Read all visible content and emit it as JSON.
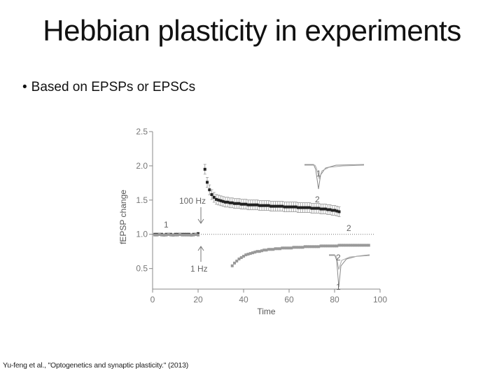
{
  "slide": {
    "title": "Hebbian plasticity in experiments",
    "bullet": "Based on EPSPs or EPSCs",
    "bullet_icon": "bullet-dot",
    "citation": "Yu-feng et al., \"Optogenetics and synaptic plasticity.\" (2013)"
  },
  "chart_data": {
    "type": "scatter",
    "xlabel": "Time",
    "ylabel": "fEPSP change",
    "xlim": [
      0,
      100
    ],
    "ylim": [
      0.2,
      2.5
    ],
    "xticks": [
      "0",
      "20",
      "40",
      "60",
      "80",
      "100"
    ],
    "yticks": [
      "0.5",
      "1.0",
      "1.5",
      "2.0",
      "2.5"
    ],
    "baseline": 1.0,
    "series": [
      {
        "color": "#222222",
        "x": [
          1,
          2,
          3,
          4,
          5,
          6,
          7,
          8,
          9,
          10,
          11,
          12,
          13,
          14,
          15,
          16,
          17,
          18,
          19,
          20,
          21,
          22,
          23,
          24,
          25,
          26,
          27,
          28,
          29,
          30,
          31,
          32,
          33,
          34,
          35,
          36,
          37,
          38,
          39,
          40,
          41,
          42,
          43,
          44,
          45,
          46,
          47,
          48,
          49,
          50,
          51,
          52,
          53,
          54,
          55,
          56,
          57,
          58,
          59,
          60,
          61,
          62,
          63,
          64,
          65,
          66,
          67,
          68,
          69,
          70,
          71,
          72,
          73,
          74,
          75,
          76,
          77,
          78,
          79,
          80,
          81,
          82
        ],
        "y": [
          1.0,
          1.0,
          1.0,
          1.0,
          0.99,
          1.0,
          1.0,
          1.0,
          0.99,
          1.0,
          1.0,
          1.0,
          1.0,
          1.0,
          1.0,
          1.0,
          0.99,
          1.0,
          1.0,
          1.01,
          null,
          null,
          1.95,
          1.76,
          1.65,
          1.58,
          1.54,
          1.51,
          1.5,
          1.49,
          1.48,
          1.47,
          1.47,
          1.46,
          1.46,
          1.45,
          1.45,
          1.45,
          1.44,
          1.44,
          1.44,
          1.43,
          1.43,
          1.43,
          1.43,
          1.43,
          1.42,
          1.42,
          1.42,
          1.42,
          1.42,
          1.41,
          1.41,
          1.41,
          1.41,
          1.41,
          1.41,
          1.4,
          1.4,
          1.4,
          1.4,
          1.4,
          1.4,
          1.39,
          1.39,
          1.39,
          1.39,
          1.39,
          1.39,
          1.38,
          1.38,
          1.38,
          1.38,
          1.37,
          1.37,
          1.37,
          1.36,
          1.36,
          1.35,
          1.35,
          1.34,
          1.33
        ]
      },
      {
        "color": "#999999",
        "x": [
          1,
          2,
          3,
          4,
          5,
          6,
          7,
          8,
          9,
          10,
          11,
          12,
          13,
          14,
          15,
          16,
          17,
          18,
          19,
          20,
          35,
          36,
          37,
          38,
          39,
          40,
          41,
          42,
          43,
          44,
          45,
          46,
          47,
          48,
          49,
          50,
          51,
          52,
          53,
          54,
          55,
          56,
          57,
          58,
          59,
          60,
          61,
          62,
          63,
          64,
          65,
          66,
          67,
          68,
          69,
          70,
          71,
          72,
          73,
          74,
          75,
          76,
          77,
          78,
          79,
          80,
          81,
          82,
          83,
          84,
          85,
          86,
          87,
          88,
          89,
          90,
          91,
          92,
          93,
          94,
          95
        ],
        "y": [
          0.99,
          0.99,
          1.0,
          0.99,
          0.99,
          0.99,
          1.0,
          0.99,
          0.99,
          0.99,
          0.99,
          1.0,
          0.99,
          0.99,
          0.99,
          0.99,
          0.99,
          0.99,
          1.0,
          0.99,
          0.54,
          0.58,
          0.61,
          0.64,
          0.66,
          0.68,
          0.7,
          0.71,
          0.72,
          0.73,
          0.74,
          0.75,
          0.75,
          0.76,
          0.77,
          0.77,
          0.78,
          0.78,
          0.78,
          0.79,
          0.79,
          0.79,
          0.8,
          0.8,
          0.8,
          0.8,
          0.8,
          0.81,
          0.81,
          0.81,
          0.81,
          0.81,
          0.82,
          0.82,
          0.82,
          0.82,
          0.82,
          0.82,
          0.82,
          0.83,
          0.83,
          0.83,
          0.83,
          0.83,
          0.83,
          0.83,
          0.83,
          0.84,
          0.84,
          0.84,
          0.84,
          0.84,
          0.84,
          0.84,
          0.84,
          0.84,
          0.84,
          0.84,
          0.84,
          0.84,
          0.84
        ]
      }
    ],
    "annotations": {
      "hz100": "100 Hz",
      "hz1": "1 Hz",
      "label_1_top": "1",
      "label_2_top": "2",
      "label_1_left": "1",
      "label_2_right": "2",
      "label_2_bottom": "2",
      "label_1_bottom": "1"
    }
  }
}
